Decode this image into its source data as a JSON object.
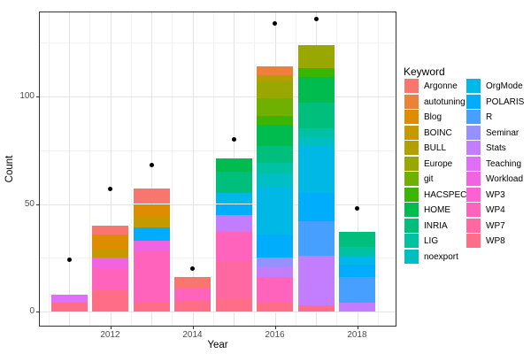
{
  "chart_data": {
    "type": "bar",
    "stacked": true,
    "title": "",
    "xlabel": "Year",
    "ylabel": "Count",
    "grid": true,
    "legend_position": "right",
    "x_tick_labels": [
      "2012",
      "2014",
      "2016",
      "2018"
    ],
    "x_tick_years": [
      2012,
      2014,
      2016,
      2018
    ],
    "y_tick_labels": [
      "0",
      "50",
      "100"
    ],
    "y_ticks": [
      0,
      50,
      100
    ],
    "y_minor_ticks": [
      25,
      75,
      125
    ],
    "ylim": [
      -6.5,
      139
    ],
    "years": [
      2011,
      2012,
      2013,
      2014,
      2015,
      2016,
      2017,
      2018
    ],
    "keywords": [
      {
        "name": "Argonne",
        "color": "#F8766D"
      },
      {
        "name": "autotuning",
        "color": "#EC8239"
      },
      {
        "name": "Blog",
        "color": "#DE8C00"
      },
      {
        "name": "BOINC",
        "color": "#C59900"
      },
      {
        "name": "BULL",
        "color": "#B2A000"
      },
      {
        "name": "Europe",
        "color": "#99A800"
      },
      {
        "name": "git",
        "color": "#6FB000"
      },
      {
        "name": "HACSPECIS",
        "color": "#39B600"
      },
      {
        "name": "HOME",
        "color": "#00BB4E"
      },
      {
        "name": "INRIA",
        "color": "#00BE7B"
      },
      {
        "name": "LIG",
        "color": "#00C1A2"
      },
      {
        "name": "noexport",
        "color": "#00BFC4"
      },
      {
        "name": "OrgMode",
        "color": "#00B8E5"
      },
      {
        "name": "POLARIS",
        "color": "#00ACFC"
      },
      {
        "name": "R",
        "color": "#45A0FF"
      },
      {
        "name": "Seminar",
        "color": "#9591FF"
      },
      {
        "name": "Stats",
        "color": "#C37EFF"
      },
      {
        "name": "Teaching",
        "color": "#E06FF6"
      },
      {
        "name": "Workload",
        "color": "#F263E2"
      },
      {
        "name": "WP3",
        "color": "#FD61D3"
      },
      {
        "name": "WP4",
        "color": "#FF63BC"
      },
      {
        "name": "WP7",
        "color": "#FF68A1"
      },
      {
        "name": "WP8",
        "color": "#FF6E86"
      }
    ],
    "stacks": [
      {
        "year": 2011,
        "total": 8,
        "segments": [
          {
            "keyword": "WP8",
            "value": 4
          },
          {
            "keyword": "Teaching",
            "value": 4
          }
        ]
      },
      {
        "year": 2012,
        "total": 40,
        "segments": [
          {
            "keyword": "WP8",
            "value": 10
          },
          {
            "keyword": "WP4",
            "value": 10
          },
          {
            "keyword": "Workload",
            "value": 5
          },
          {
            "keyword": "BOINC",
            "value": 4
          },
          {
            "keyword": "Blog",
            "value": 7
          },
          {
            "keyword": "Argonne",
            "value": 4
          }
        ]
      },
      {
        "year": 2013,
        "total": 57,
        "segments": [
          {
            "keyword": "WP8",
            "value": 4
          },
          {
            "keyword": "WP4",
            "value": 24
          },
          {
            "keyword": "Workload",
            "value": 5
          },
          {
            "keyword": "POLARIS",
            "value": 6
          },
          {
            "keyword": "BOINC",
            "value": 5
          },
          {
            "keyword": "Blog",
            "value": 6
          },
          {
            "keyword": "Argonne",
            "value": 7
          }
        ]
      },
      {
        "year": 2014,
        "total": 16,
        "segments": [
          {
            "keyword": "WP8",
            "value": 5
          },
          {
            "keyword": "WP4",
            "value": 6
          },
          {
            "keyword": "Argonne",
            "value": 5
          }
        ]
      },
      {
        "year": 2015,
        "total": 71,
        "segments": [
          {
            "keyword": "WP8",
            "value": 6
          },
          {
            "keyword": "WP7",
            "value": 17
          },
          {
            "keyword": "WP4",
            "value": 14
          },
          {
            "keyword": "Stats",
            "value": 8
          },
          {
            "keyword": "POLARIS",
            "value": 5
          },
          {
            "keyword": "OrgMode",
            "value": 5
          },
          {
            "keyword": "INRIA",
            "value": 10
          },
          {
            "keyword": "HOME",
            "value": 6
          }
        ]
      },
      {
        "year": 2016,
        "total": 114,
        "segments": [
          {
            "keyword": "WP8",
            "value": 4
          },
          {
            "keyword": "WP4",
            "value": 12
          },
          {
            "keyword": "Stats",
            "value": 5
          },
          {
            "keyword": "Seminar",
            "value": 4
          },
          {
            "keyword": "POLARIS",
            "value": 11
          },
          {
            "keyword": "OrgMode",
            "value": 22
          },
          {
            "keyword": "noexport",
            "value": 6
          },
          {
            "keyword": "LIG",
            "value": 5
          },
          {
            "keyword": "INRIA",
            "value": 8
          },
          {
            "keyword": "HOME",
            "value": 10
          },
          {
            "keyword": "HACSPECIS",
            "value": 4
          },
          {
            "keyword": "git",
            "value": 8
          },
          {
            "keyword": "Europe",
            "value": 8
          },
          {
            "keyword": "BULL",
            "value": 3
          },
          {
            "keyword": "autotuning",
            "value": 4
          }
        ]
      },
      {
        "year": 2017,
        "total": 124,
        "segments": [
          {
            "keyword": "WP8",
            "value": 3
          },
          {
            "keyword": "Stats",
            "value": 23
          },
          {
            "keyword": "R",
            "value": 16
          },
          {
            "keyword": "POLARIS",
            "value": 13
          },
          {
            "keyword": "OrgMode",
            "value": 22
          },
          {
            "keyword": "noexport",
            "value": 4
          },
          {
            "keyword": "LIG",
            "value": 4
          },
          {
            "keyword": "INRIA",
            "value": 12
          },
          {
            "keyword": "HOME",
            "value": 12
          },
          {
            "keyword": "HACSPECIS",
            "value": 4
          },
          {
            "keyword": "Europe",
            "value": 11
          }
        ]
      },
      {
        "year": 2018,
        "total": 37,
        "segments": [
          {
            "keyword": "Stats",
            "value": 4
          },
          {
            "keyword": "R",
            "value": 12
          },
          {
            "keyword": "POLARIS",
            "value": 6
          },
          {
            "keyword": "OrgMode",
            "value": 4
          },
          {
            "keyword": "LIG",
            "value": 4
          },
          {
            "keyword": "INRIA",
            "value": 7
          }
        ]
      }
    ],
    "points": [
      {
        "year": 2011,
        "count": 24
      },
      {
        "year": 2012,
        "count": 57
      },
      {
        "year": 2013,
        "count": 68
      },
      {
        "year": 2014,
        "count": 20
      },
      {
        "year": 2015,
        "count": 80
      },
      {
        "year": 2016,
        "count": 134
      },
      {
        "year": 2017,
        "count": 136
      },
      {
        "year": 2018,
        "count": 48
      }
    ],
    "point_color": "#000000"
  },
  "legend": {
    "title": "Keyword",
    "columns": [
      [
        "Argonne",
        "autotuning",
        "Blog",
        "BOINC",
        "BULL",
        "Europe",
        "git",
        "HACSPECIS",
        "HOME",
        "INRIA",
        "LIG",
        "noexport"
      ],
      [
        "OrgMode",
        "POLARIS",
        "R",
        "Seminar",
        "Stats",
        "Teaching",
        "Workload",
        "WP3",
        "WP4",
        "WP7",
        "WP8"
      ]
    ]
  }
}
